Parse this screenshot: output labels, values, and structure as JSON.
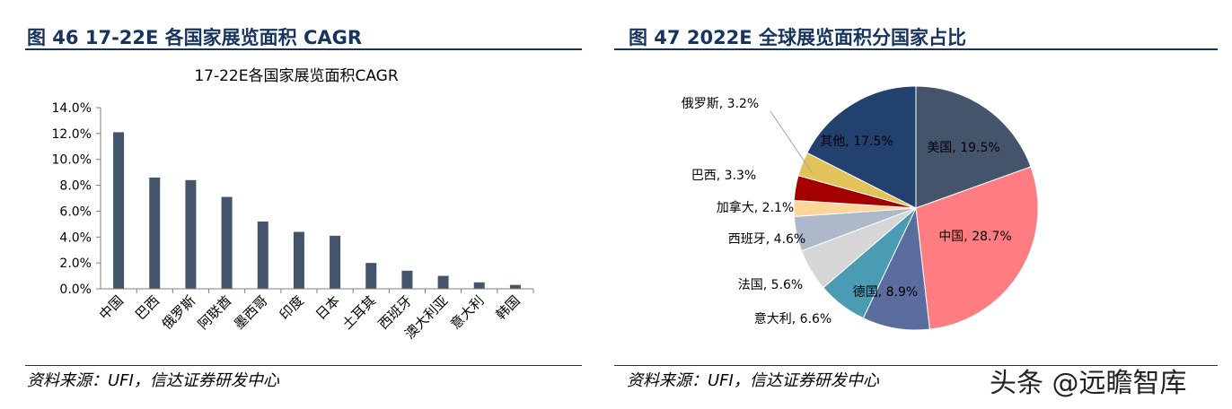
{
  "left_figure": {
    "heading": "图 46 17-22E 各国家展览面积 CAGR",
    "source": "资料来源：UFI，信达证券研发中心"
  },
  "right_figure": {
    "heading": "图 47 2022E 全球展览面积分国家占比",
    "source": "资料来源：UFI，信达证券研发中心"
  },
  "watermark": "头条 @远瞻智库",
  "colors": {
    "heading": "#17345f",
    "bar": "#44546a"
  },
  "chart_data": [
    {
      "type": "bar",
      "title": "17-22E各国家展览面积CAGR",
      "xlabel": "",
      "ylabel": "",
      "categories": [
        "中国",
        "巴西",
        "俄罗斯",
        "阿联酋",
        "墨西哥",
        "印度",
        "日本",
        "土耳其",
        "西班牙",
        "澳大利亚",
        "意大利",
        "韩国"
      ],
      "values": [
        12.1,
        8.6,
        8.4,
        7.1,
        5.2,
        4.4,
        4.1,
        2.0,
        1.4,
        1.0,
        0.5,
        0.3
      ],
      "ylim": [
        0,
        14
      ],
      "yticks": [
        "0.0%",
        "2.0%",
        "4.0%",
        "6.0%",
        "8.0%",
        "10.0%",
        "12.0%",
        "14.0%"
      ],
      "grid": false,
      "bar_color": "#44546a"
    },
    {
      "type": "pie",
      "labels": [
        "美国",
        "中国",
        "德国",
        "意大利",
        "法国",
        "西班牙",
        "加拿大",
        "巴西",
        "俄罗斯",
        "其他"
      ],
      "values": [
        19.5,
        28.7,
        8.9,
        6.6,
        5.6,
        4.6,
        2.1,
        3.3,
        3.2,
        17.5
      ],
      "data_labels": [
        "美国, 19.5%",
        "中国, 28.7%",
        "德国, 8.9%",
        "意大利, 6.6%",
        "法国, 5.6%",
        "西班牙, 4.6%",
        "加拿大, 2.1%",
        "巴西, 3.3%",
        "俄罗斯, 3.2%",
        "其他, 17.5%"
      ],
      "colors": [
        "#44546a",
        "#ff7c80",
        "#5b6c9e",
        "#4a9cb5",
        "#d6d6d6",
        "#adb9ca",
        "#ffd699",
        "#a50000",
        "#e2c35a",
        "#23416f"
      ],
      "start_angle": "12 o'clock",
      "direction": "clockwise",
      "legend": "none"
    }
  ]
}
